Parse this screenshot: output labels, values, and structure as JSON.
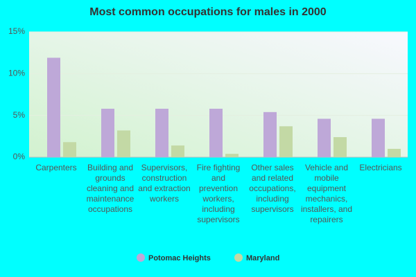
{
  "chart_data": {
    "type": "bar",
    "title": "Most common occupations for males in 2000",
    "categories": [
      "Carpenters",
      "Building and grounds cleaning and maintenance occupations",
      "Supervisors, construction and extraction workers",
      "Fire fighting and prevention workers, including supervisors",
      "Other sales and related occupations, including supervisors",
      "Vehicle and mobile equipment mechanics, installers, and repairers",
      "Electricians"
    ],
    "series": [
      {
        "name": "Potomac Heights",
        "color": "#bea8d8",
        "values": [
          11.9,
          5.8,
          5.8,
          5.8,
          5.4,
          4.6,
          4.6
        ]
      },
      {
        "name": "Maryland",
        "color": "#c3d9a5",
        "values": [
          1.8,
          3.2,
          1.4,
          0.4,
          3.7,
          2.4,
          1.0
        ]
      }
    ],
    "ylim": [
      0,
      15
    ],
    "yticks": [
      {
        "value": 0,
        "label": "0%"
      },
      {
        "value": 5,
        "label": "5%"
      },
      {
        "value": 10,
        "label": "10%"
      },
      {
        "value": 15,
        "label": "15%"
      }
    ],
    "grid": true
  }
}
